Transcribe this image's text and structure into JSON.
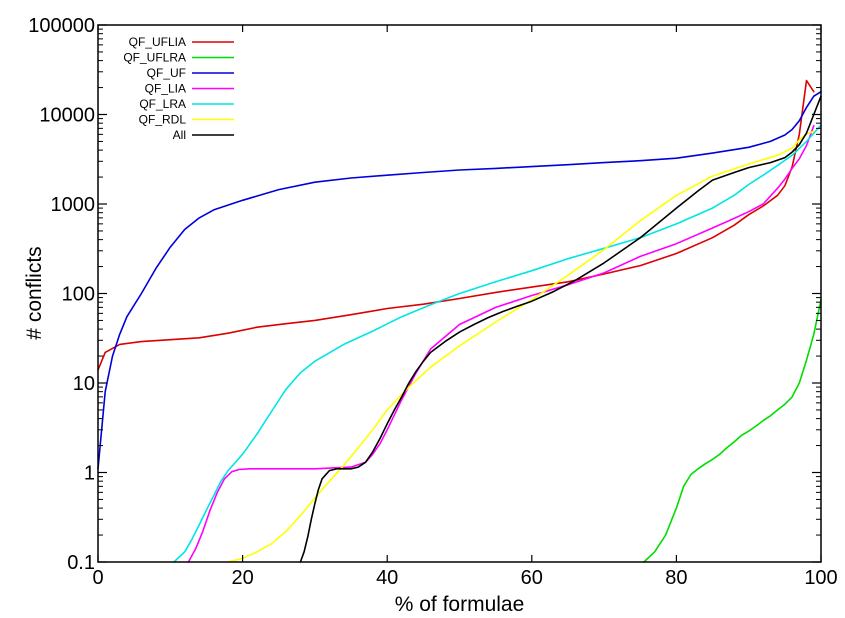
{
  "chart_data": {
    "type": "line",
    "title": "",
    "xlabel": "% of formulae",
    "ylabel": "# conflicts",
    "xlim": [
      0,
      100
    ],
    "ylim": [
      0.1,
      100000
    ],
    "yscale": "log",
    "grid": false,
    "legend_position": "top-left",
    "x_ticks": [
      0,
      20,
      40,
      60,
      80,
      100
    ],
    "x_tick_labels": [
      "0",
      "20",
      "40",
      "60",
      "80",
      "100"
    ],
    "y_ticks": [
      0.1,
      1,
      10,
      100,
      1000,
      10000,
      100000
    ],
    "y_tick_labels": [
      "0.1",
      "1",
      "10",
      "100",
      "1000",
      "10000",
      "100000"
    ],
    "series": [
      {
        "name": "QF_UFLIA",
        "color": "#dd0000",
        "x": [
          0,
          1,
          3,
          6,
          10,
          14,
          18,
          22,
          26,
          30,
          35,
          40,
          45,
          50,
          55,
          60,
          65,
          70,
          75,
          80,
          85,
          88,
          90,
          92,
          94,
          95,
          96,
          97,
          98,
          99
        ],
        "y": [
          14,
          22,
          27,
          29,
          30.5,
          32,
          36,
          42,
          46,
          50,
          58,
          68,
          76,
          88,
          103,
          118,
          135,
          165,
          205,
          280,
          420,
          580,
          760,
          950,
          1250,
          1600,
          2600,
          6000,
          24000,
          18000
        ]
      },
      {
        "name": "QF_UFLRA",
        "color": "#00dd00",
        "x": [
          75.5,
          77,
          78.5,
          80,
          81,
          82,
          83,
          84,
          85,
          86,
          87,
          88,
          89,
          90,
          91,
          92,
          93,
          94,
          95,
          96,
          97,
          98,
          99,
          100
        ],
        "y": [
          0.1,
          0.13,
          0.2,
          0.4,
          0.7,
          0.95,
          1.1,
          1.25,
          1.4,
          1.6,
          1.9,
          2.2,
          2.6,
          2.9,
          3.3,
          3.8,
          4.3,
          5.0,
          5.8,
          7.0,
          10,
          18,
          35,
          85
        ]
      },
      {
        "name": "QF_UF",
        "color": "#0000dd",
        "x": [
          0,
          1,
          2,
          3,
          4,
          6,
          8,
          10,
          12,
          14,
          16,
          20,
          25,
          30,
          35,
          40,
          45,
          50,
          55,
          60,
          65,
          70,
          75,
          80,
          85,
          90,
          93,
          95,
          96,
          97,
          98,
          99,
          100
        ],
        "y": [
          1.1,
          8,
          20,
          35,
          55,
          100,
          190,
          330,
          520,
          700,
          860,
          1100,
          1450,
          1750,
          1950,
          2100,
          2250,
          2400,
          2500,
          2620,
          2750,
          2900,
          3050,
          3250,
          3700,
          4300,
          5000,
          5900,
          6800,
          8500,
          12000,
          16000,
          18000
        ]
      },
      {
        "name": "QF_LIA",
        "color": "#ff00ff",
        "x": [
          12.5,
          13.5,
          14.5,
          15.5,
          16.5,
          17.5,
          18.5,
          19.5,
          21,
          25,
          30,
          35,
          37,
          38,
          39,
          40,
          42,
          44,
          46,
          50,
          55,
          60,
          65,
          70,
          75,
          80,
          85,
          88,
          90,
          92,
          94,
          95,
          96,
          97,
          98,
          99
        ],
        "y": [
          0.1,
          0.14,
          0.22,
          0.38,
          0.6,
          0.85,
          1.02,
          1.08,
          1.1,
          1.1,
          1.1,
          1.15,
          1.3,
          1.6,
          2.1,
          3,
          6.5,
          13,
          24,
          45,
          70,
          95,
          125,
          170,
          260,
          360,
          540,
          690,
          820,
          1000,
          1500,
          1900,
          2500,
          3200,
          4500,
          7500
        ]
      },
      {
        "name": "QF_LRA",
        "color": "#00e5e5",
        "x": [
          10.5,
          12,
          13,
          14,
          15,
          16,
          17,
          18,
          20,
          22,
          24,
          26,
          28,
          30,
          34,
          38,
          42,
          46,
          50,
          55,
          60,
          65,
          70,
          75,
          80,
          85,
          88,
          90,
          92,
          94,
          96,
          98,
          100
        ],
        "y": [
          0.1,
          0.13,
          0.18,
          0.26,
          0.38,
          0.55,
          0.8,
          1.05,
          1.6,
          2.7,
          4.8,
          8.5,
          13,
          17.5,
          27,
          38,
          55,
          75,
          100,
          135,
          180,
          245,
          320,
          420,
          600,
          900,
          1250,
          1650,
          2100,
          2700,
          3500,
          5000,
          7600
        ]
      },
      {
        "name": "QF_RDL",
        "color": "#ffff00",
        "x": [
          18,
          20,
          22,
          24,
          26,
          28,
          30,
          32,
          34,
          36,
          38,
          40,
          43,
          46,
          50,
          55,
          60,
          65,
          70,
          75,
          80,
          85,
          90,
          94,
          96,
          97,
          98,
          99
        ],
        "y": [
          0.1,
          0.11,
          0.13,
          0.16,
          0.22,
          0.33,
          0.52,
          0.8,
          1.2,
          1.9,
          3,
          5,
          9,
          15,
          26,
          48,
          85,
          160,
          310,
          650,
          1250,
          2050,
          2800,
          3500,
          4200,
          5200,
          6000,
          6500
        ]
      },
      {
        "name": "All",
        "color": "#000000",
        "x": [
          28,
          28.5,
          29,
          29.5,
          30,
          30.5,
          31,
          32,
          33,
          34,
          35,
          36,
          37,
          38,
          39,
          40,
          41,
          42,
          43,
          44,
          45,
          46,
          48,
          50,
          52,
          54,
          56,
          58,
          60,
          63,
          66,
          70,
          75,
          80,
          83,
          85,
          88,
          90,
          93,
          95,
          96,
          97,
          98,
          99,
          100
        ],
        "y": [
          0.1,
          0.13,
          0.19,
          0.3,
          0.45,
          0.65,
          0.85,
          1.05,
          1.1,
          1.1,
          1.1,
          1.15,
          1.3,
          1.7,
          2.4,
          3.5,
          5,
          7,
          10,
          13.5,
          17.5,
          22,
          29,
          37,
          45,
          54,
          63,
          72,
          82,
          105,
          140,
          220,
          420,
          900,
          1400,
          1850,
          2250,
          2550,
          2900,
          3300,
          3800,
          4600,
          6200,
          10000,
          16000
        ]
      }
    ]
  }
}
